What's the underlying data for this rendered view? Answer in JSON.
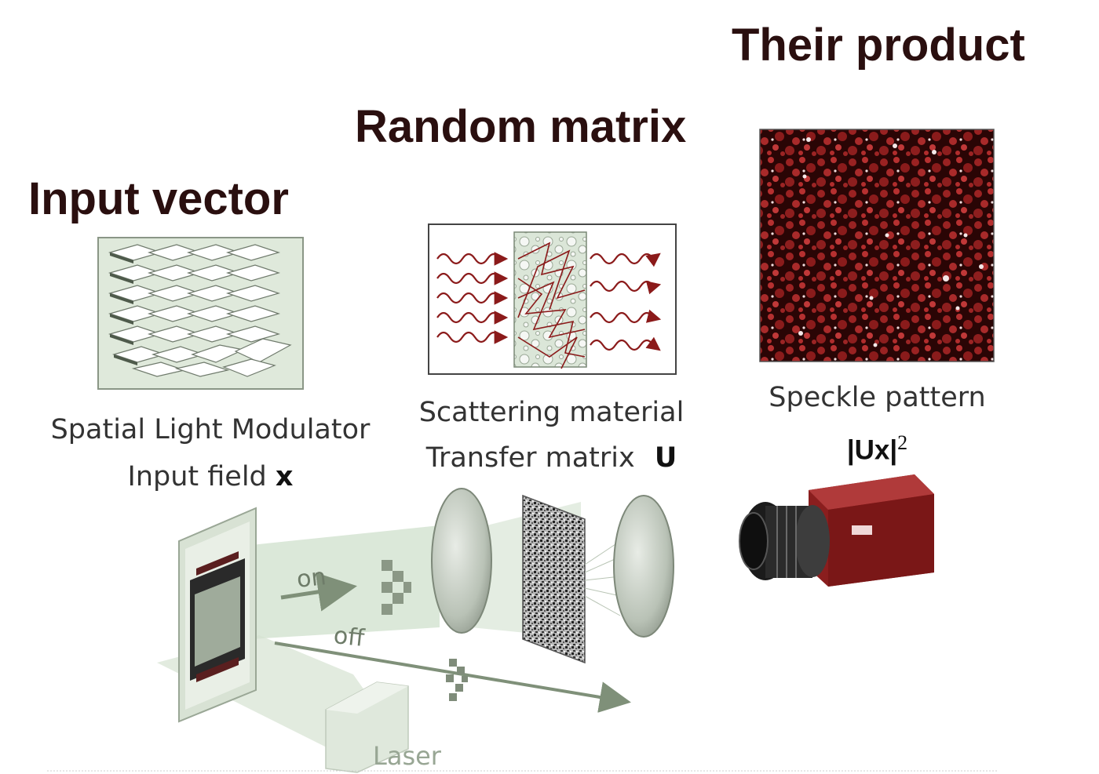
{
  "headings": {
    "input_vector": "Input vector",
    "random_matrix": "Random matrix",
    "their_product": "Their product"
  },
  "captions": {
    "slm_line1": "Spatial Light Modulator",
    "slm_line2": "Input field",
    "slm_symbol": "x",
    "scatter_line1": "Scattering material",
    "scatter_line2": "Transfer matrix",
    "scatter_symbol": "U",
    "speckle_line1": "Speckle pattern",
    "speckle_formula": "|Ux|",
    "speckle_exponent": "2"
  },
  "setup_labels": {
    "on": "on",
    "off": "off",
    "laser": "Laser"
  },
  "colors": {
    "heading": "#2a0f0f",
    "arrow_red": "#8b1a1a",
    "beam_green": "#cfe0cc",
    "camera_red": "#8a1e1e",
    "speckle_bg": "#2a0505"
  }
}
